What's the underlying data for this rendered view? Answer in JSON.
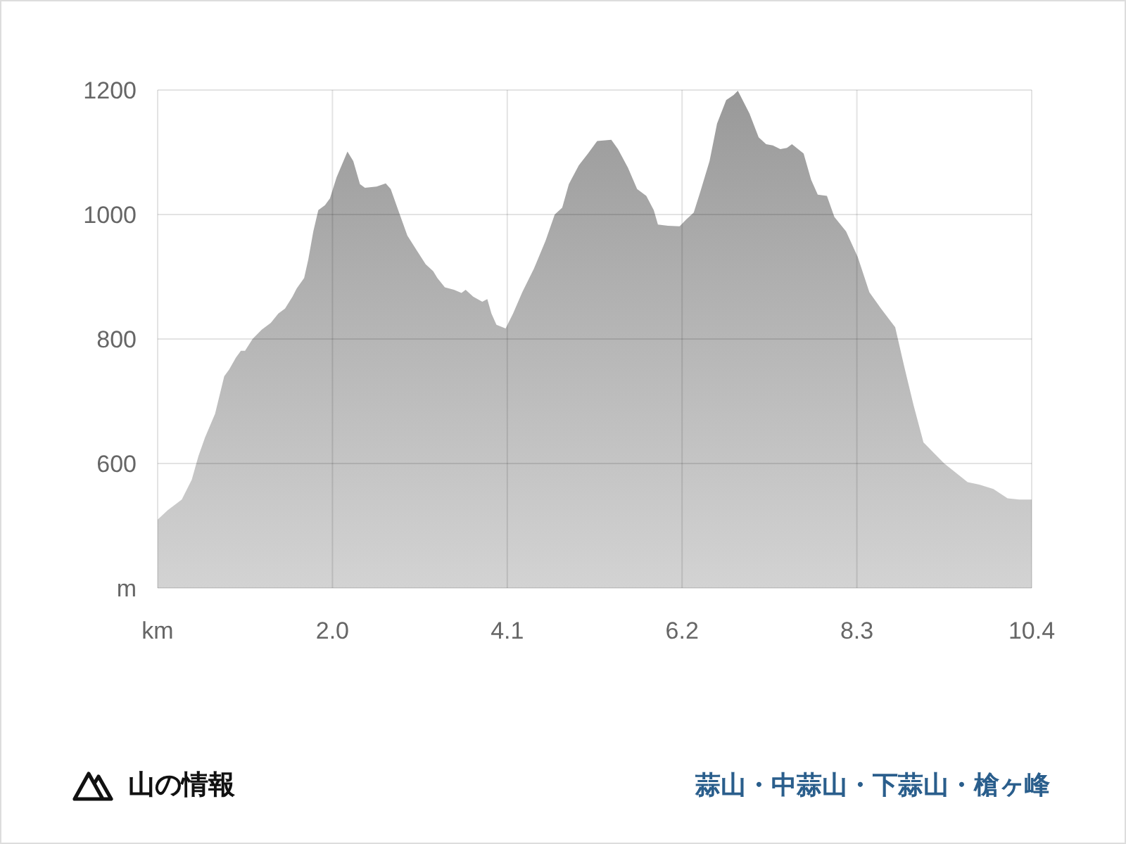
{
  "chart_data": {
    "type": "area",
    "color": "#999999",
    "x": [
      -0.1,
      0.02,
      0.19,
      0.31,
      0.39,
      0.47,
      0.59,
      0.7,
      0.76,
      0.84,
      0.9,
      0.95,
      1.04,
      1.15,
      1.26,
      1.35,
      1.43,
      1.52,
      1.57,
      1.66,
      1.71,
      1.77,
      1.83,
      1.91,
      1.97,
      2.05,
      2.18,
      2.25,
      2.33,
      2.39,
      2.53,
      2.64,
      2.7,
      2.79,
      2.9,
      3.01,
      3.12,
      3.21,
      3.26,
      3.35,
      3.46,
      3.55,
      3.6,
      3.69,
      3.8,
      3.86,
      3.91,
      3.97,
      4.08,
      4.17,
      4.28,
      4.42,
      4.56,
      4.67,
      4.76,
      4.84,
      4.96,
      5.07,
      5.18,
      5.35,
      5.43,
      5.55,
      5.66,
      5.77,
      5.86,
      5.91,
      6.03,
      6.17,
      6.25,
      6.34,
      6.42,
      6.53,
      6.62,
      6.73,
      6.82,
      6.87,
      7.01,
      7.12,
      7.21,
      7.29,
      7.38,
      7.46,
      7.52,
      7.66,
      7.75,
      7.83,
      7.94,
      8.03,
      8.17,
      8.31,
      8.45,
      8.59,
      8.76,
      8.87,
      8.98,
      9.1,
      9.21,
      9.35,
      9.49,
      9.63,
      9.77,
      9.94,
      10.11,
      10.25,
      10.4
    ],
    "values": [
      510,
      525,
      542,
      574,
      612,
      642,
      680,
      740,
      751,
      770,
      781,
      781,
      800,
      815,
      826,
      841,
      849,
      868,
      881,
      898,
      928,
      973,
      1007,
      1015,
      1026,
      1060,
      1101,
      1086,
      1049,
      1043,
      1045,
      1050,
      1041,
      1007,
      966,
      943,
      920,
      909,
      898,
      883,
      879,
      874,
      879,
      868,
      860,
      864,
      841,
      823,
      817,
      841,
      875,
      913,
      958,
      1000,
      1011,
      1049,
      1079,
      1098,
      1118,
      1120,
      1105,
      1075,
      1041,
      1030,
      1007,
      984,
      982,
      981,
      992,
      1003,
      1037,
      1086,
      1146,
      1184,
      1192,
      1199,
      1162,
      1124,
      1113,
      1111,
      1105,
      1107,
      1113,
      1098,
      1056,
      1032,
      1030,
      996,
      973,
      932,
      875,
      849,
      819,
      755,
      694,
      634,
      619,
      600,
      585,
      570,
      566,
      559,
      544,
      542,
      542
    ],
    "xlim": [
      -0.1,
      10.4
    ],
    "xticks": [
      {
        "value": -0.1,
        "label": "km"
      },
      {
        "value": 2,
        "label": "2.0"
      },
      4.1,
      6.2,
      8.3,
      10.4
    ],
    "ylim": [
      400,
      1200
    ],
    "yticks": [
      {
        "value": 400,
        "label": "m"
      },
      600,
      800,
      1000,
      1200
    ],
    "grid": true,
    "annotations": [
      "山の情報",
      "蒜山・中蒜山・下蒜山・槍ヶ峰"
    ]
  }
}
